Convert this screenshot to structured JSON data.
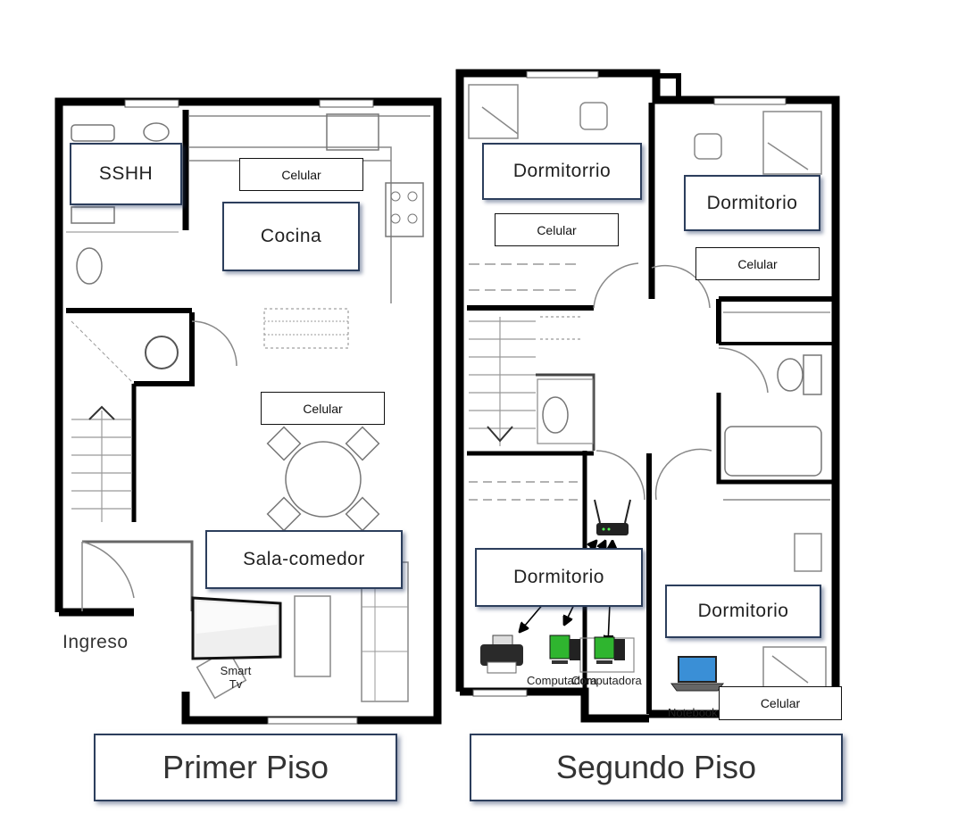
{
  "floors": {
    "first": {
      "title": "Primer Piso"
    },
    "second": {
      "title": "Segundo Piso"
    }
  },
  "rooms": {
    "sshh": "SSHH",
    "cocina": "Cocina",
    "sala_comedor": "Sala-comedor",
    "ingreso": "Ingreso",
    "dorm_top_left": "Dormitorrio",
    "dorm_top_right": "Dormitorio",
    "dorm_mid": "Dormitorio",
    "dorm_bottom_right": "Dormitorio"
  },
  "devices": {
    "celular_kitchen": "Celular",
    "celular_living": "Celular",
    "celular_dorm1": "Celular",
    "celular_dorm2": "Celular",
    "celular_dorm4": "Celular",
    "smart_tv": "Smart Tv",
    "computer_1": "Computadora",
    "computer_2": "Computadora",
    "notebook": "Notebook"
  },
  "colors": {
    "wall": "#000000",
    "box_border": "#2c3e5c",
    "printer": "#222222",
    "computer": "#2fb52f",
    "router": "#222222",
    "laptop_screen": "#3a8fd6"
  }
}
